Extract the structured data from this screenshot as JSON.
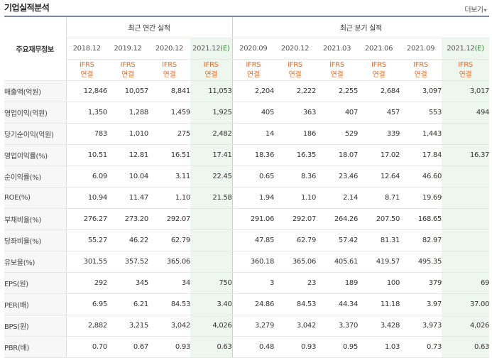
{
  "title": "기업실적분석",
  "more_label": "더보기",
  "more_arrow": "▾",
  "corner_label": "주요재무정보",
  "groups": {
    "annual": "최근 연간 실적",
    "quarter": "최근 분기 실적"
  },
  "periods": [
    "2018.12",
    "2019.12",
    "2020.12",
    "2021.12",
    "2020.09",
    "2020.12",
    "2021.03",
    "2021.06",
    "2021.09",
    "2021.12"
  ],
  "estimate_mark": "(E)",
  "basis_top": "IFRS",
  "basis_bottom": "연결",
  "rows": [
    {
      "label": "매출액(억원)",
      "values": [
        "12,846",
        "10,057",
        "8,841",
        "11,053",
        "2,204",
        "2,222",
        "2,255",
        "2,684",
        "3,097",
        "3,017"
      ]
    },
    {
      "label": "영업이익(억원)",
      "values": [
        "1,350",
        "1,288",
        "1,459",
        "1,925",
        "405",
        "363",
        "407",
        "457",
        "553",
        "494"
      ]
    },
    {
      "label": "당기순이익(억원)",
      "values": [
        "783",
        "1,010",
        "275",
        "2,482",
        "14",
        "186",
        "529",
        "339",
        "1,443",
        ""
      ]
    },
    {
      "label": "영업이익률(%)",
      "values": [
        "10.51",
        "12.81",
        "16.51",
        "17.41",
        "18.36",
        "16.35",
        "18.07",
        "17.02",
        "17.84",
        "16.37"
      ]
    },
    {
      "label": "순이익률(%)",
      "values": [
        "6.09",
        "10.04",
        "3.11",
        "22.45",
        "0.65",
        "8.36",
        "23.46",
        "12.64",
        "46.60",
        ""
      ]
    },
    {
      "label": "ROE(%)",
      "values": [
        "10.94",
        "11.47",
        "1.10",
        "21.58",
        "1.94",
        "1.10",
        "2.14",
        "8.71",
        "19.69",
        ""
      ]
    },
    {
      "label": "부채비율(%)",
      "values": [
        "276.27",
        "273.20",
        "292.07",
        "",
        "291.06",
        "292.07",
        "264.26",
        "207.50",
        "168.65",
        ""
      ]
    },
    {
      "label": "당좌비율(%)",
      "values": [
        "55.27",
        "46.22",
        "62.79",
        "",
        "47.85",
        "62.79",
        "57.42",
        "81.31",
        "82.97",
        ""
      ]
    },
    {
      "label": "유보율(%)",
      "values": [
        "301.55",
        "357.52",
        "365.06",
        "",
        "360.18",
        "365.06",
        "405.61",
        "419.57",
        "495.35",
        ""
      ]
    },
    {
      "label": "EPS(원)",
      "values": [
        "292",
        "345",
        "34",
        "750",
        "3",
        "23",
        "189",
        "100",
        "379",
        "69"
      ]
    },
    {
      "label": "PER(배)",
      "values": [
        "6.95",
        "6.21",
        "84.53",
        "3.40",
        "24.86",
        "84.53",
        "44.34",
        "11.18",
        "3.97",
        "37.00"
      ]
    },
    {
      "label": "BPS(원)",
      "values": [
        "2,882",
        "3,215",
        "3,042",
        "4,026",
        "3,279",
        "3,042",
        "3,370",
        "3,428",
        "3,973",
        "4,026"
      ]
    },
    {
      "label": "PBR(배)",
      "values": [
        "0.70",
        "0.67",
        "0.93",
        "0.63",
        "0.48",
        "0.93",
        "0.95",
        "1.03",
        "0.73",
        "0.63"
      ]
    }
  ]
}
